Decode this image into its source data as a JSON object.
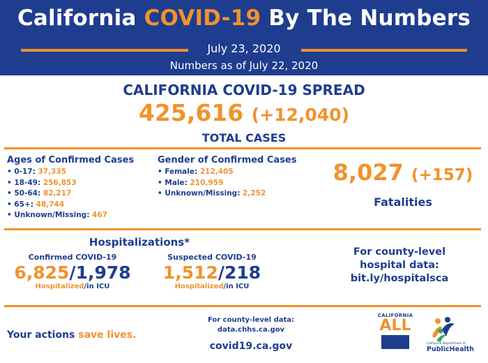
{
  "header": {
    "title_prefix": "California ",
    "title_highlight": "COVID-19",
    "title_suffix": " By The Numbers",
    "date": "July 23, 2020",
    "as_of": "Numbers as of July 22, 2020"
  },
  "spread": {
    "title": "CALIFORNIA COVID-19 SPREAD",
    "total": "425,616",
    "delta": "(+12,040)",
    "label": "TOTAL CASES"
  },
  "ages": {
    "heading": "Ages of Confirmed Cases",
    "items": [
      {
        "label": "• 0-17: ",
        "value": "37,335"
      },
      {
        "label": "• 18-49: ",
        "value": "256,853"
      },
      {
        "label": "• 50-64: ",
        "value": "82,217"
      },
      {
        "label": "• 65+: ",
        "value": "48,744"
      },
      {
        "label": "• Unknown/Missing: ",
        "value": "467"
      }
    ]
  },
  "gender": {
    "heading": "Gender of Confirmed Cases",
    "items": [
      {
        "label": "• Female: ",
        "value": "212,405"
      },
      {
        "label": "• Male: ",
        "value": "210,959"
      },
      {
        "label": "• Unknown/Missing: ",
        "value": "2,252"
      }
    ]
  },
  "fatalities": {
    "total": "8,027",
    "delta": "(+157)",
    "label": "Fatalities"
  },
  "hospitalizations": {
    "title": "Hospitalizations*",
    "confirmed": {
      "heading": "Confirmed COVID-19",
      "hospitalized": "6,825",
      "sep": "/",
      "icu": "1,978",
      "cap_hosp": "Hospitalized",
      "cap_icu": "/in ICU"
    },
    "suspected": {
      "heading": "Suspected COVID-19",
      "hospitalized": "1,512",
      "sep": "/",
      "icu": "218",
      "cap_hosp": "Hospitalized",
      "cap_icu": "/in ICU"
    }
  },
  "county_hospital": {
    "line1": "For county-level",
    "line2": "hospital data:",
    "line3": "bit.ly/hospitalsca"
  },
  "footer": {
    "actions_prefix": "Your actions ",
    "actions_highlight": "save lives.",
    "county_line1": "For county-level data:",
    "county_line2": "data.chhs.ca.gov",
    "site": "covid19.ca.gov",
    "logo_all_top": "CALIFORNIA",
    "logo_all_word": "ALL",
    "logo_cdph_small": "California Department of",
    "logo_cdph_big": "PublicHealth"
  },
  "colors": {
    "navy": "#1f3d8f",
    "orange": "#f2922b",
    "white": "#ffffff"
  }
}
